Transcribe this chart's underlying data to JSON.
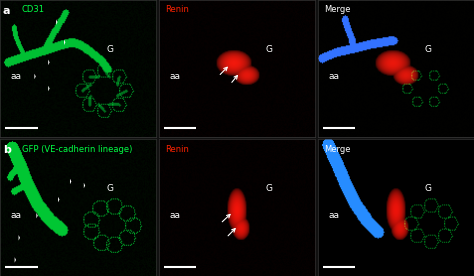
{
  "panels_info": [
    [
      [
        "a",
        "CD31"
      ],
      [
        "",
        "Renin"
      ],
      [
        "",
        "Merge"
      ]
    ],
    [
      [
        "b",
        "GFP (VE-cadherin lineage)"
      ],
      [
        "",
        "Renin"
      ],
      [
        "",
        "Merge"
      ]
    ]
  ],
  "fig_width": 4.74,
  "fig_height": 2.76,
  "dpi": 100,
  "green_color": "#00ff44",
  "red_color": "#ff2200",
  "white_color": "#ffffff",
  "label_fontsize": 6.0,
  "ann_fontsize": 6.5,
  "bg_color": "#111111"
}
